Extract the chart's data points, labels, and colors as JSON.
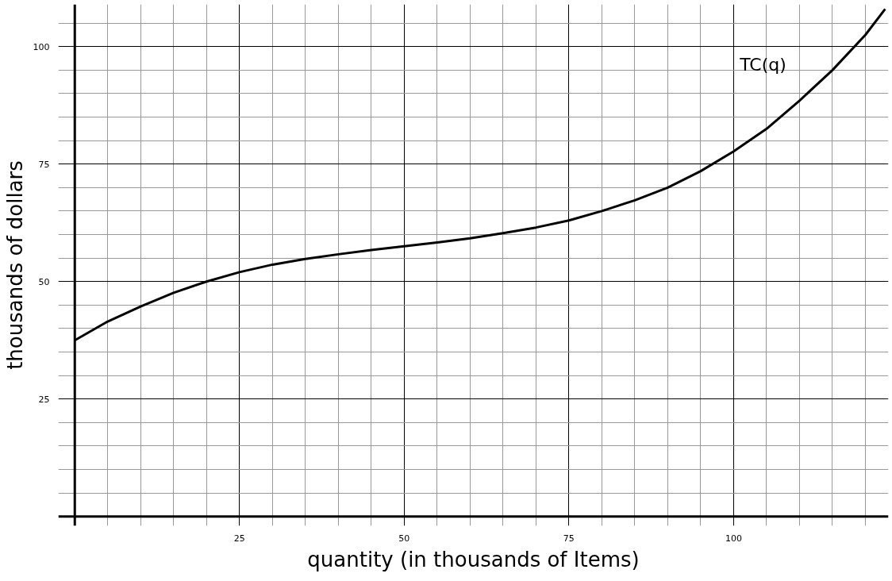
{
  "chart_data": {
    "type": "line",
    "xlabel": "quantity (in thousands of Items)",
    "ylabel": "thousands of dollars",
    "x": [
      0,
      5,
      10,
      15,
      20,
      25,
      30,
      35,
      40,
      45,
      50,
      55,
      60,
      65,
      70,
      75,
      80,
      85,
      90,
      95,
      100,
      105,
      110,
      115,
      120,
      123
    ],
    "series": [
      {
        "name": "TC(q)",
        "color": "#000000",
        "values": [
          37.5,
          41.5,
          44.7,
          47.6,
          50,
          52,
          53.6,
          54.8,
          55.8,
          56.7,
          57.5,
          58.3,
          59.2,
          60.3,
          61.5,
          63,
          65,
          67.3,
          70,
          73.5,
          77.7,
          82.5,
          88.5,
          95,
          102.5,
          108
        ]
      }
    ],
    "xlim": [
      -2.5,
      123.5
    ],
    "ylim": [
      -2,
      109
    ],
    "xticks": [
      {
        "value": 5,
        "label": null
      },
      {
        "value": 10,
        "label": null
      },
      {
        "value": 15,
        "label": null
      },
      {
        "value": 20,
        "label": null
      },
      25,
      {
        "value": 30,
        "label": null
      },
      {
        "value": 35,
        "label": null
      },
      {
        "value": 40,
        "label": null
      },
      {
        "value": 45,
        "label": null
      },
      50,
      {
        "value": 55,
        "label": null
      },
      {
        "value": 60,
        "label": null
      },
      {
        "value": 65,
        "label": null
      },
      {
        "value": 70,
        "label": null
      },
      75,
      {
        "value": 80,
        "label": null
      },
      {
        "value": 85,
        "label": null
      },
      {
        "value": 90,
        "label": null
      },
      {
        "value": 95,
        "label": null
      },
      100,
      {
        "value": 105,
        "label": null
      },
      {
        "value": 110,
        "label": null
      },
      {
        "value": 115,
        "label": null
      },
      {
        "value": 120,
        "label": null
      }
    ],
    "yticks": [
      {
        "value": 5,
        "label": null
      },
      {
        "value": 10,
        "label": null
      },
      {
        "value": 15,
        "label": null
      },
      {
        "value": 20,
        "label": null
      },
      25,
      {
        "value": 30,
        "label": null
      },
      {
        "value": 35,
        "label": null
      },
      {
        "value": 40,
        "label": null
      },
      {
        "value": 45,
        "label": null
      },
      50,
      {
        "value": 55,
        "label": null
      },
      {
        "value": 60,
        "label": null
      },
      {
        "value": 65,
        "label": null
      },
      {
        "value": 70,
        "label": null
      },
      75,
      {
        "value": 80,
        "label": null
      },
      {
        "value": 85,
        "label": null
      },
      {
        "value": 90,
        "label": null
      },
      {
        "value": 95,
        "label": null
      },
      100,
      {
        "value": 105,
        "label": null
      }
    ],
    "grid": true,
    "marker": "none",
    "line_style": "solid"
  }
}
